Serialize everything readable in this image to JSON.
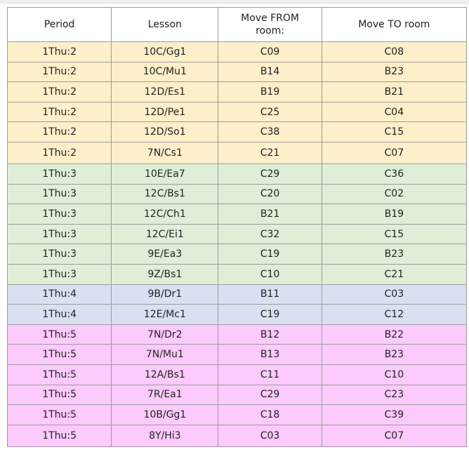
{
  "table": {
    "headers": {
      "period": "Period",
      "lesson": "Lesson",
      "move_from": "Move FROM room:",
      "move_to": "Move TO room"
    },
    "group_colors": {
      "1Thu:2": "#fdefc9",
      "1Thu:3": "#e0eed7",
      "1Thu:4": "#d8e0f1",
      "1Thu:5": "#fccafc"
    },
    "rows": [
      {
        "period": "1Thu:2",
        "lesson": "10C/Gg1",
        "from": "C09",
        "to": "C08"
      },
      {
        "period": "1Thu:2",
        "lesson": "10C/Mu1",
        "from": "B14",
        "to": "B23"
      },
      {
        "period": "1Thu:2",
        "lesson": "12D/Es1",
        "from": "B19",
        "to": "B21"
      },
      {
        "period": "1Thu:2",
        "lesson": "12D/Pe1",
        "from": "C25",
        "to": "C04"
      },
      {
        "period": "1Thu:2",
        "lesson": "12D/So1",
        "from": "C38",
        "to": "C15"
      },
      {
        "period": "1Thu:2",
        "lesson": "7N/Cs1",
        "from": "C21",
        "to": "C07"
      },
      {
        "period": "1Thu:3",
        "lesson": "10E/Ea7",
        "from": "C29",
        "to": "C36"
      },
      {
        "period": "1Thu:3",
        "lesson": "12C/Bs1",
        "from": "C20",
        "to": "C02"
      },
      {
        "period": "1Thu:3",
        "lesson": "12C/Ch1",
        "from": "B21",
        "to": "B19"
      },
      {
        "period": "1Thu:3",
        "lesson": "12C/Ei1",
        "from": "C32",
        "to": "C15"
      },
      {
        "period": "1Thu:3",
        "lesson": "9E/Ea3",
        "from": "C19",
        "to": "B23"
      },
      {
        "period": "1Thu:3",
        "lesson": "9Z/Bs1",
        "from": "C10",
        "to": "C21"
      },
      {
        "period": "1Thu:4",
        "lesson": "9B/Dr1",
        "from": "B11",
        "to": "C03"
      },
      {
        "period": "1Thu:4",
        "lesson": "12E/Mc1",
        "from": "C19",
        "to": "C12"
      },
      {
        "period": "1Thu:5",
        "lesson": "7N/Dr2",
        "from": "B12",
        "to": "B22"
      },
      {
        "period": "1Thu:5",
        "lesson": "7N/Mu1",
        "from": "B13",
        "to": "B23"
      },
      {
        "period": "1Thu:5",
        "lesson": "12A/Bs1",
        "from": "C11",
        "to": "C10"
      },
      {
        "period": "1Thu:5",
        "lesson": "7R/Ea1",
        "from": "C29",
        "to": "C23"
      },
      {
        "period": "1Thu:5",
        "lesson": "10B/Gg1",
        "from": "C18",
        "to": "C39"
      },
      {
        "period": "1Thu:5",
        "lesson": "8Y/Hi3",
        "from": "C03",
        "to": "C07"
      }
    ]
  }
}
